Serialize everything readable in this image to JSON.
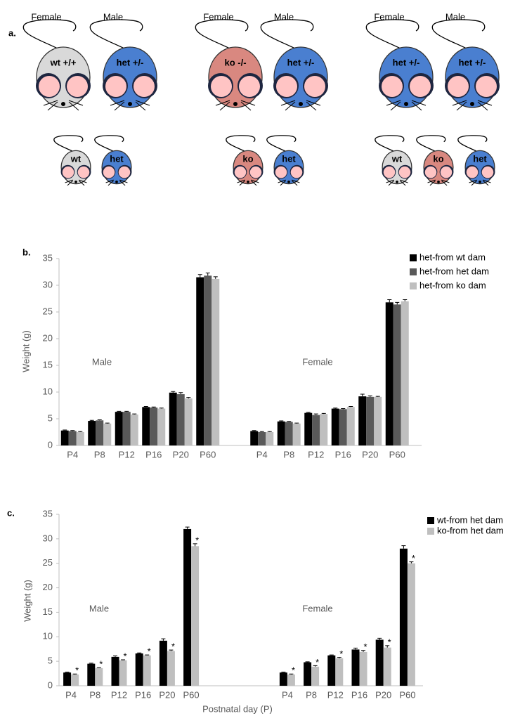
{
  "diagram": {
    "label": "a.",
    "families": [
      {
        "parents": [
          {
            "sex": "Female",
            "genotype": "wt +/+",
            "color": "#d9d9d9"
          },
          {
            "sex": "Male",
            "genotype": "het +/-",
            "color": "#4a7fd0"
          }
        ],
        "pups": [
          {
            "genotype": "wt",
            "color": "#d9d9d9"
          },
          {
            "genotype": "het",
            "color": "#4a7fd0"
          }
        ]
      },
      {
        "parents": [
          {
            "sex": "Female",
            "genotype": "ko -/-",
            "color": "#d98880"
          },
          {
            "sex": "Male",
            "genotype": "het +/-",
            "color": "#4a7fd0"
          }
        ],
        "pups": [
          {
            "genotype": "ko",
            "color": "#d98880"
          },
          {
            "genotype": "het",
            "color": "#4a7fd0"
          }
        ]
      },
      {
        "parents": [
          {
            "sex": "Female",
            "genotype": "het +/-",
            "color": "#4a7fd0"
          },
          {
            "sex": "Male",
            "genotype": "het +/-",
            "color": "#4a7fd0"
          }
        ],
        "pups": [
          {
            "genotype": "wt",
            "color": "#d9d9d9"
          },
          {
            "genotype": "ko",
            "color": "#d98880"
          },
          {
            "genotype": "het",
            "color": "#4a7fd0"
          }
        ]
      }
    ]
  },
  "chart_data": [
    {
      "type": "bar",
      "label": "b.",
      "ylabel": "Weight (g)",
      "categories": [
        "P4",
        "P8",
        "P12",
        "P16",
        "P20",
        "P60",
        null,
        "P4",
        "P8",
        "P12",
        "P16",
        "P20",
        "P60"
      ],
      "annotations": [
        "Male",
        "Female"
      ],
      "series": [
        {
          "name": "het-from wt dam",
          "color": "#000000",
          "values": [
            2.8,
            4.6,
            6.3,
            7.2,
            9.9,
            31.5,
            null,
            2.7,
            4.5,
            6.1,
            6.9,
            9.2,
            26.8
          ],
          "errors": [
            0.1,
            0.1,
            0.1,
            0.1,
            0.2,
            0.5,
            null,
            0.1,
            0.1,
            0.1,
            0.1,
            0.4,
            0.5
          ]
        },
        {
          "name": "het-from het dam",
          "color": "#595959",
          "values": [
            2.7,
            4.7,
            6.3,
            7.1,
            9.6,
            31.8,
            null,
            2.5,
            4.4,
            5.7,
            6.8,
            9.1,
            26.4
          ],
          "errors": [
            0.1,
            0.1,
            0.1,
            0.1,
            0.3,
            0.5,
            null,
            0.1,
            0.1,
            0.2,
            0.1,
            0.2,
            0.4
          ]
        },
        {
          "name": "het-from ko dam",
          "color": "#bfbfbf",
          "values": [
            2.5,
            4.1,
            5.8,
            6.9,
            8.8,
            31.2,
            null,
            2.5,
            4.1,
            5.9,
            7.2,
            9.1,
            27.0
          ],
          "errors": [
            0.1,
            0.1,
            0.1,
            0.1,
            0.2,
            0.4,
            null,
            0.1,
            0.1,
            0.1,
            0.1,
            0.1,
            0.3
          ]
        }
      ],
      "ylim": [
        0,
        35
      ],
      "yticks": [
        0,
        5,
        10,
        15,
        20,
        25,
        30,
        35
      ],
      "legend": "upper right"
    },
    {
      "type": "bar",
      "label": "c.",
      "ylabel": "Weight (g)",
      "xlabel": "Postnatal day (P)",
      "categories": [
        "P4",
        "P8",
        "P12",
        "P16",
        "P20",
        "P60",
        null,
        null,
        null,
        "P4",
        "P8",
        "P12",
        "P16",
        "P20",
        "P60"
      ],
      "annotations": [
        "Male",
        "Female"
      ],
      "series": [
        {
          "name": "wt-from het dam",
          "color": "#000000",
          "values": [
            2.7,
            4.5,
            5.9,
            6.6,
            9.2,
            32.0,
            null,
            null,
            null,
            2.7,
            4.8,
            6.2,
            7.4,
            9.4,
            28.0
          ],
          "errors": [
            0.1,
            0.1,
            0.2,
            0.1,
            0.4,
            0.4,
            null,
            null,
            null,
            0.1,
            0.1,
            0.1,
            0.3,
            0.3,
            0.6
          ]
        },
        {
          "name": "ko-from het dam",
          "color": "#bfbfbf",
          "values": [
            2.3,
            3.6,
            5.2,
            6.2,
            7.1,
            28.5,
            null,
            null,
            null,
            2.3,
            3.9,
            5.6,
            6.9,
            7.8,
            25.0
          ],
          "errors": [
            0.1,
            0.1,
            0.1,
            0.1,
            0.2,
            0.5,
            null,
            null,
            null,
            0.1,
            0.2,
            0.2,
            0.3,
            0.4,
            0.3
          ],
          "significance": [
            "*",
            "*",
            "*",
            "*",
            "*",
            "*",
            null,
            null,
            null,
            "*",
            "*",
            "*",
            "*",
            "*",
            "*"
          ]
        }
      ],
      "ylim": [
        0,
        35
      ],
      "yticks": [
        0,
        5,
        10,
        15,
        20,
        25,
        30,
        35
      ],
      "legend": "upper right"
    }
  ]
}
